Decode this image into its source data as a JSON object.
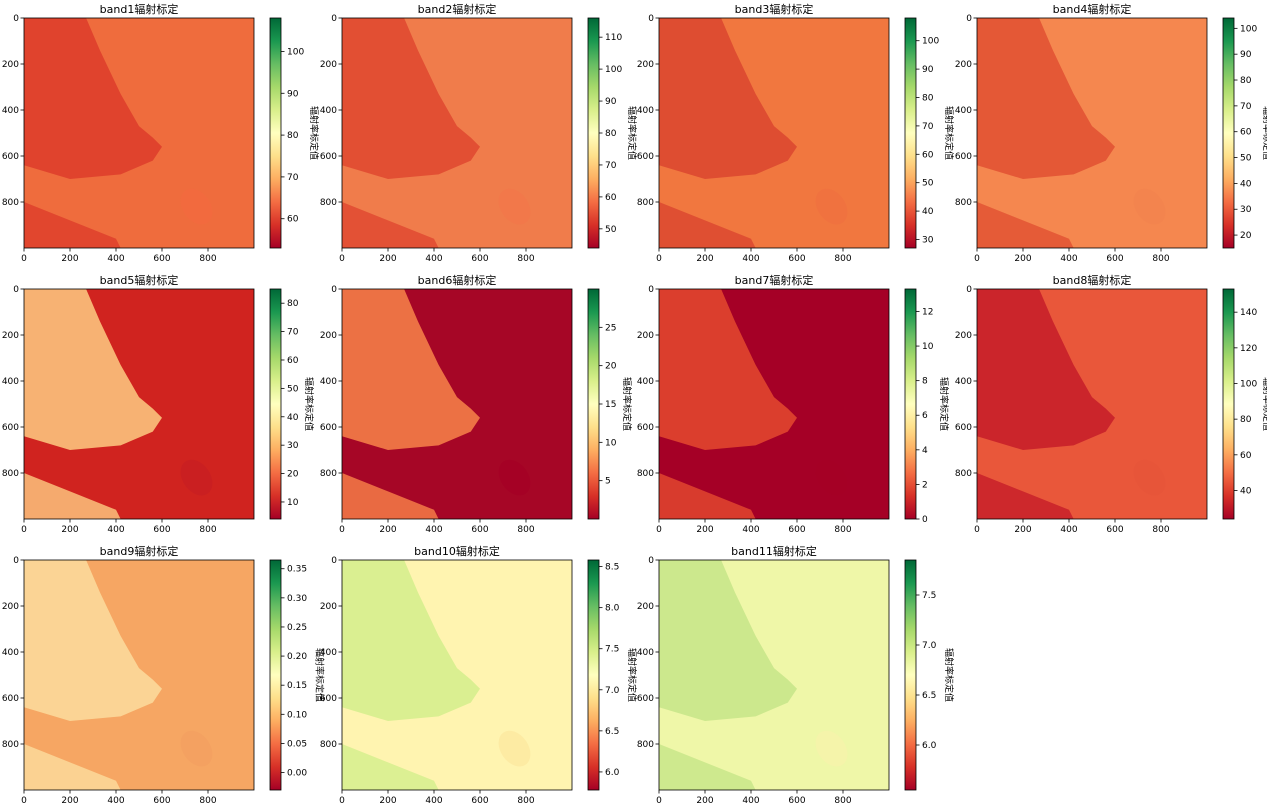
{
  "figure": {
    "colormap": "RdYlGn",
    "colormap_stops": [
      "#a50026",
      "#d73027",
      "#f46d43",
      "#fdae61",
      "#fee08b",
      "#ffffbf",
      "#d9ef8b",
      "#a6d96a",
      "#66bd63",
      "#1a9850",
      "#006837"
    ]
  },
  "chart_data": [
    {
      "type": "heatmap",
      "title": "band1辐射标定",
      "xticks": [
        "0",
        "200",
        "400",
        "600",
        "800"
      ],
      "yticks": [
        "0",
        "200",
        "400",
        "600",
        "800"
      ],
      "xlim": [
        0,
        1000
      ],
      "ylim": [
        1000,
        0
      ],
      "colorbar": {
        "label": "辐射率标定值",
        "ticks": [
          "60",
          "70",
          "80",
          "90",
          "100"
        ],
        "range": [
          53,
          108
        ]
      }
    },
    {
      "type": "heatmap",
      "title": "band2辐射标定",
      "xticks": [
        "0",
        "200",
        "400",
        "600",
        "800"
      ],
      "yticks": [
        "0",
        "200",
        "400",
        "600",
        "800"
      ],
      "xlim": [
        0,
        1000
      ],
      "ylim": [
        1000,
        0
      ],
      "colorbar": {
        "label": "辐射率标定值",
        "ticks": [
          "50",
          "60",
          "70",
          "80",
          "90",
          "100",
          "110"
        ],
        "range": [
          44,
          116
        ]
      }
    },
    {
      "type": "heatmap",
      "title": "band3辐射标定",
      "xticks": [
        "0",
        "200",
        "400",
        "600",
        "800"
      ],
      "yticks": [
        "0",
        "200",
        "400",
        "600",
        "800"
      ],
      "xlim": [
        0,
        1000
      ],
      "ylim": [
        1000,
        0
      ],
      "colorbar": {
        "label": "辐射率标定值",
        "ticks": [
          "30",
          "40",
          "50",
          "60",
          "70",
          "80",
          "90",
          "100"
        ],
        "range": [
          27,
          108
        ]
      }
    },
    {
      "type": "heatmap",
      "title": "band4辐射标定",
      "xticks": [
        "0",
        "200",
        "400",
        "600",
        "800"
      ],
      "yticks": [
        "0",
        "200",
        "400",
        "600",
        "800"
      ],
      "xlim": [
        0,
        1000
      ],
      "ylim": [
        1000,
        0
      ],
      "colorbar": {
        "label": "辐射率标定值",
        "ticks": [
          "20",
          "30",
          "40",
          "50",
          "60",
          "70",
          "80",
          "90",
          "100"
        ],
        "range": [
          15,
          104
        ]
      }
    },
    {
      "type": "heatmap",
      "title": "band5辐射标定",
      "xticks": [
        "0",
        "200",
        "400",
        "600",
        "800"
      ],
      "yticks": [
        "0",
        "200",
        "400",
        "600",
        "800"
      ],
      "xlim": [
        0,
        1000
      ],
      "ylim": [
        1000,
        0
      ],
      "colorbar": {
        "label": "辐射率标定值",
        "ticks": [
          "10",
          "20",
          "30",
          "40",
          "50",
          "60",
          "70",
          "80"
        ],
        "range": [
          4,
          85
        ]
      }
    },
    {
      "type": "heatmap",
      "title": "band6辐射标定",
      "xticks": [
        "0",
        "200",
        "400",
        "600",
        "800"
      ],
      "yticks": [
        "0",
        "200",
        "400",
        "600",
        "800"
      ],
      "xlim": [
        0,
        1000
      ],
      "ylim": [
        1000,
        0
      ],
      "colorbar": {
        "label": "辐射率标定值",
        "ticks": [
          "5",
          "10",
          "15",
          "20",
          "25"
        ],
        "range": [
          0,
          30
        ]
      }
    },
    {
      "type": "heatmap",
      "title": "band7辐射标定",
      "xticks": [
        "0",
        "200",
        "400",
        "600",
        "800"
      ],
      "yticks": [
        "0",
        "200",
        "400",
        "600",
        "800"
      ],
      "xlim": [
        0,
        1000
      ],
      "ylim": [
        1000,
        0
      ],
      "colorbar": {
        "label": "辐射率标定值",
        "ticks": [
          "0",
          "2",
          "4",
          "6",
          "8",
          "10",
          "12"
        ],
        "range": [
          0,
          13.3
        ]
      }
    },
    {
      "type": "heatmap",
      "title": "band8辐射标定",
      "xticks": [
        "0",
        "200",
        "400",
        "600",
        "800"
      ],
      "yticks": [
        "0",
        "200",
        "400",
        "600",
        "800"
      ],
      "xlim": [
        0,
        1000
      ],
      "ylim": [
        1000,
        0
      ],
      "colorbar": {
        "label": "辐射率标定值",
        "ticks": [
          "40",
          "60",
          "80",
          "100",
          "120",
          "140"
        ],
        "range": [
          24,
          153
        ]
      }
    },
    {
      "type": "heatmap",
      "title": "band9辐射标定",
      "xticks": [
        "0",
        "200",
        "400",
        "600",
        "800"
      ],
      "yticks": [
        "0",
        "200",
        "400",
        "600",
        "800"
      ],
      "xlim": [
        0,
        1000
      ],
      "ylim": [
        1000,
        0
      ],
      "colorbar": {
        "label": "辐射率标定值",
        "ticks": [
          "0.00",
          "0.05",
          "0.10",
          "0.15",
          "0.20",
          "0.25",
          "0.30",
          "0.35"
        ],
        "range": [
          -0.03,
          0.365
        ]
      }
    },
    {
      "type": "heatmap",
      "title": "band10辐射标定",
      "xticks": [
        "0",
        "200",
        "400",
        "600",
        "800"
      ],
      "yticks": [
        "0",
        "200",
        "400",
        "600",
        "800"
      ],
      "xlim": [
        0,
        1000
      ],
      "ylim": [
        1000,
        0
      ],
      "colorbar": {
        "label": "辐射率标定值",
        "ticks": [
          "6.0",
          "6.5",
          "7.0",
          "7.5",
          "8.0",
          "8.5"
        ],
        "range": [
          5.78,
          8.58
        ]
      }
    },
    {
      "type": "heatmap",
      "title": "band11辐射标定",
      "xticks": [
        "0",
        "200",
        "400",
        "600",
        "800"
      ],
      "yticks": [
        "0",
        "200",
        "400",
        "600",
        "800"
      ],
      "xlim": [
        0,
        1000
      ],
      "ylim": [
        1000,
        0
      ],
      "colorbar": {
        "label": "辐射率标定值",
        "ticks": [
          "6.0",
          "6.5",
          "7.0",
          "7.5"
        ],
        "range": [
          5.55,
          7.85
        ]
      }
    }
  ]
}
